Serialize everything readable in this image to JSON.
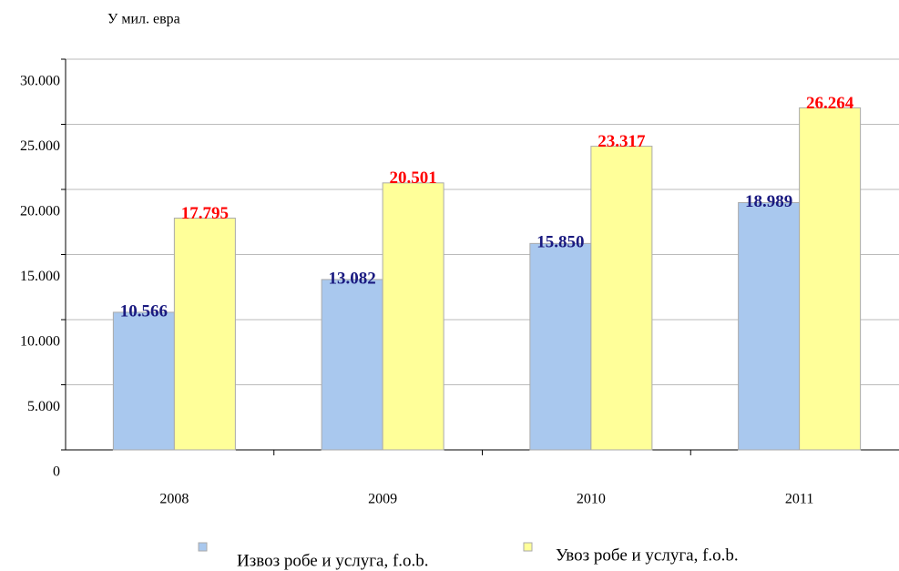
{
  "chart_data": {
    "type": "bar",
    "y_axis_label": "У мил. евра",
    "categories": [
      "2008",
      "2009",
      "2010",
      "2011"
    ],
    "series": [
      {
        "name": "Извоз робе и услуга, f.o.b.",
        "color": "#a9c8ee",
        "label_color": "#1a1a80",
        "values": [
          10566,
          13082,
          15850,
          18989
        ],
        "value_labels": [
          "10.566",
          "13.082",
          "15.850",
          "18.989"
        ]
      },
      {
        "name": "Увоз робе и услуга, f.o.b.",
        "color": "#ffff99",
        "label_color": "#ff0000",
        "values": [
          17795,
          20501,
          23317,
          26264
        ],
        "value_labels": [
          "17.795",
          "20.501",
          "23.317",
          "26.264"
        ]
      }
    ],
    "ylim": [
      0,
      30000
    ],
    "yticks": [
      0,
      {
        "value": 5000,
        "label": "5.000"
      },
      {
        "value": 10000,
        "label": "10.000"
      },
      {
        "value": 15000,
        "label": "15.000"
      },
      {
        "value": 20000,
        "label": "20.000"
      },
      {
        "value": 25000,
        "label": "25.000"
      },
      {
        "value": 30000,
        "label": "30.000"
      }
    ],
    "grid": true
  }
}
